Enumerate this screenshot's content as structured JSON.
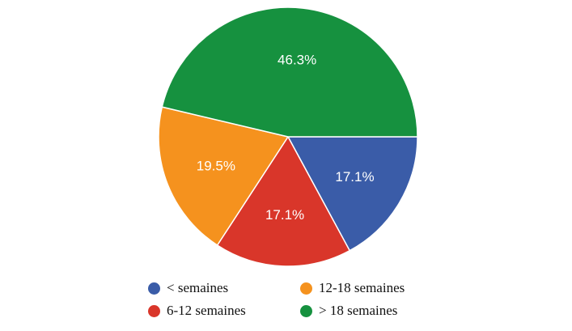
{
  "chart_data": {
    "type": "pie",
    "title": "",
    "slices": [
      {
        "label": "< semaines",
        "value": 17.1,
        "display": "17.1%",
        "color": "#3a5ca8"
      },
      {
        "label": "6-12 semaines",
        "value": 17.1,
        "display": "17.1%",
        "color": "#d9362a"
      },
      {
        "label": "12-18 semaines",
        "value": 19.5,
        "display": "19.5%",
        "color": "#f5921e"
      },
      {
        "label": "> 18 semaines",
        "value": 46.3,
        "display": "46.3%",
        "color": "#16913f"
      }
    ],
    "legend": {
      "placement": "bottom",
      "items": [
        {
          "label": "< semaines",
          "color": "#3a5ca8"
        },
        {
          "label": "12-18 semaines",
          "color": "#f5921e"
        },
        {
          "label": "6-12 semaines",
          "color": "#d9362a"
        },
        {
          "label": "> 18 semaines",
          "color": "#16913f"
        }
      ]
    }
  }
}
